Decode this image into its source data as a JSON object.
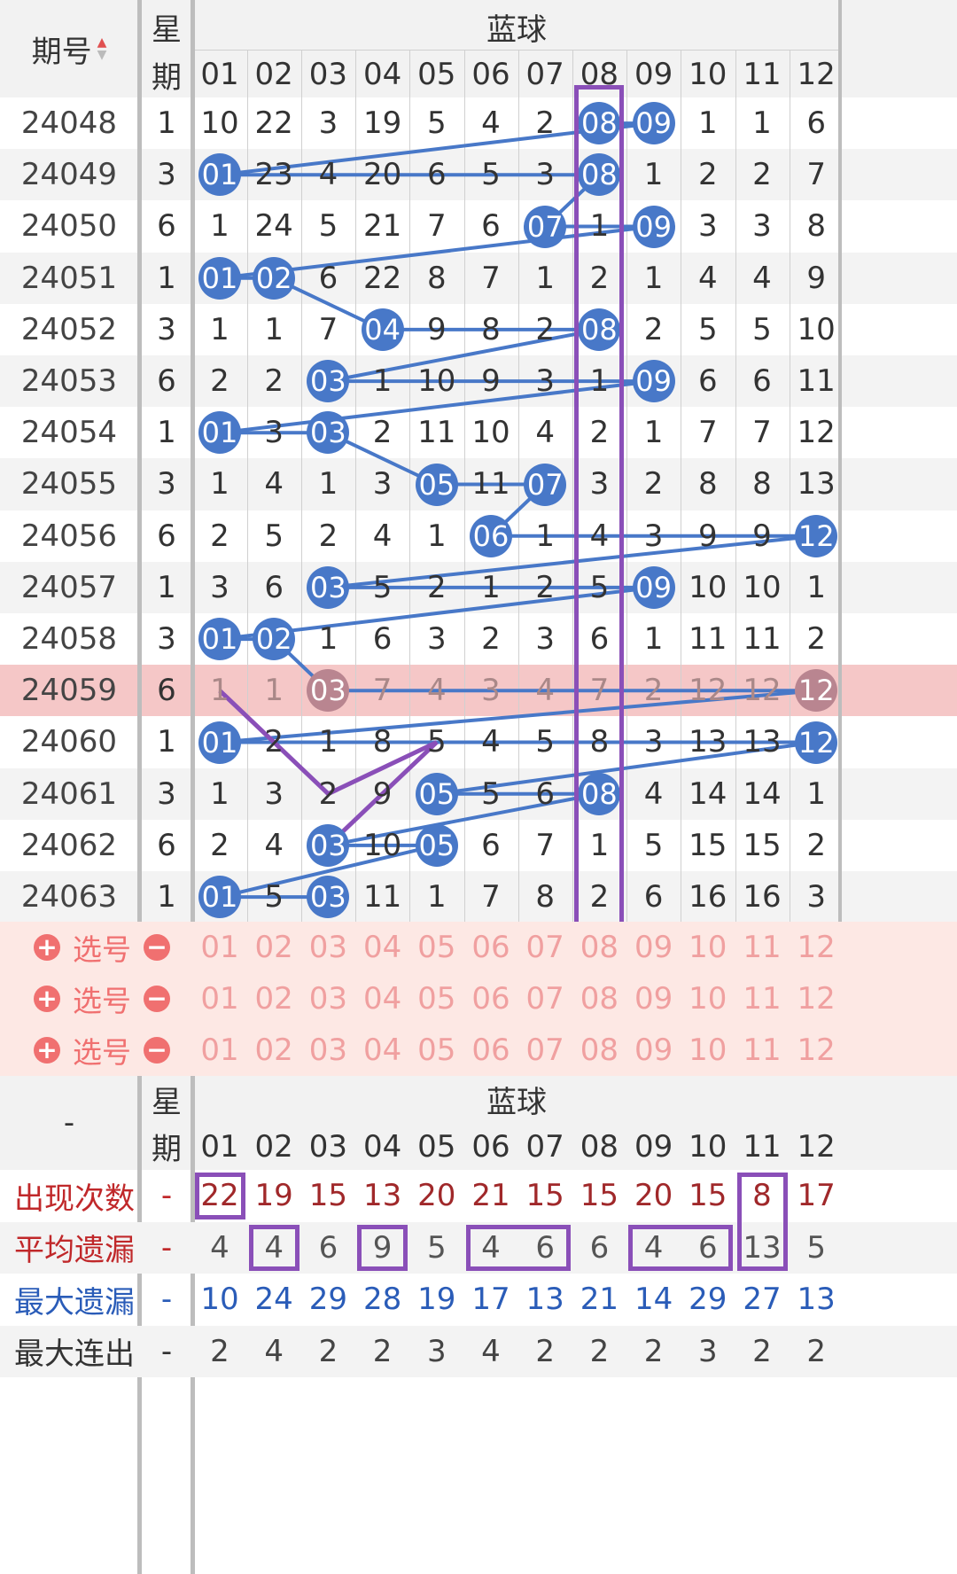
{
  "header": {
    "period_label": "期号",
    "sort_icon": "sort-arrows-icon",
    "weekday_label_1": "星",
    "weekday_label_2": "期",
    "group_title": "蓝球",
    "columns": [
      "01",
      "02",
      "03",
      "04",
      "05",
      "06",
      "07",
      "08",
      "09",
      "10",
      "11",
      "12"
    ]
  },
  "rows": [
    {
      "period": "24048",
      "weekday": "1",
      "cells": [
        "10",
        "22",
        "3",
        "19",
        "5",
        "4",
        "2",
        "08",
        "09",
        "1",
        "1",
        "6"
      ],
      "hits": [
        8,
        9
      ]
    },
    {
      "period": "24049",
      "weekday": "3",
      "cells": [
        "01",
        "23",
        "4",
        "20",
        "6",
        "5",
        "3",
        "08",
        "1",
        "2",
        "2",
        "7"
      ],
      "hits": [
        1,
        8
      ]
    },
    {
      "period": "24050",
      "weekday": "6",
      "cells": [
        "1",
        "24",
        "5",
        "21",
        "7",
        "6",
        "07",
        "1",
        "09",
        "3",
        "3",
        "8"
      ],
      "hits": [
        7,
        9
      ]
    },
    {
      "period": "24051",
      "weekday": "1",
      "cells": [
        "01",
        "02",
        "6",
        "22",
        "8",
        "7",
        "1",
        "2",
        "1",
        "4",
        "4",
        "9"
      ],
      "hits": [
        1,
        2
      ]
    },
    {
      "period": "24052",
      "weekday": "3",
      "cells": [
        "1",
        "1",
        "7",
        "04",
        "9",
        "8",
        "2",
        "08",
        "2",
        "5",
        "5",
        "10"
      ],
      "hits": [
        4,
        8
      ]
    },
    {
      "period": "24053",
      "weekday": "6",
      "cells": [
        "2",
        "2",
        "03",
        "1",
        "10",
        "9",
        "3",
        "1",
        "09",
        "6",
        "6",
        "11"
      ],
      "hits": [
        3,
        9
      ]
    },
    {
      "period": "24054",
      "weekday": "1",
      "cells": [
        "01",
        "3",
        "03",
        "2",
        "11",
        "10",
        "4",
        "2",
        "1",
        "7",
        "7",
        "12"
      ],
      "hits": [
        1,
        3
      ]
    },
    {
      "period": "24055",
      "weekday": "3",
      "cells": [
        "1",
        "4",
        "1",
        "3",
        "05",
        "11",
        "07",
        "3",
        "2",
        "8",
        "8",
        "13"
      ],
      "hits": [
        5,
        7
      ]
    },
    {
      "period": "24056",
      "weekday": "6",
      "cells": [
        "2",
        "5",
        "2",
        "4",
        "1",
        "06",
        "1",
        "4",
        "3",
        "9",
        "9",
        "12"
      ],
      "hits": [
        6,
        12
      ]
    },
    {
      "period": "24057",
      "weekday": "1",
      "cells": [
        "3",
        "6",
        "03",
        "5",
        "2",
        "1",
        "2",
        "5",
        "09",
        "10",
        "10",
        "1"
      ],
      "hits": [
        3,
        9
      ]
    },
    {
      "period": "24058",
      "weekday": "3",
      "cells": [
        "01",
        "02",
        "1",
        "6",
        "3",
        "2",
        "3",
        "6",
        "1",
        "11",
        "11",
        "2"
      ],
      "hits": [
        1,
        2
      ]
    },
    {
      "period": "24059",
      "weekday": "6",
      "cells": [
        "1",
        "1",
        "03",
        "7",
        "4",
        "3",
        "4",
        "7",
        "2",
        "12",
        "12",
        "12"
      ],
      "hits": [
        3,
        12
      ]
    },
    {
      "period": "24060",
      "weekday": "1",
      "cells": [
        "01",
        "2",
        "1",
        "8",
        "5",
        "4",
        "5",
        "8",
        "3",
        "13",
        "13",
        "12"
      ],
      "hits": [
        1,
        12
      ]
    },
    {
      "period": "24061",
      "weekday": "3",
      "cells": [
        "1",
        "3",
        "2",
        "9",
        "05",
        "5",
        "6",
        "08",
        "4",
        "14",
        "14",
        "1"
      ],
      "hits": [
        5,
        8
      ]
    },
    {
      "period": "24062",
      "weekday": "6",
      "cells": [
        "2",
        "4",
        "03",
        "10",
        "05",
        "6",
        "7",
        "1",
        "5",
        "15",
        "15",
        "2"
      ],
      "hits": [
        3,
        5
      ]
    },
    {
      "period": "24063",
      "weekday": "1",
      "cells": [
        "01",
        "5",
        "03",
        "11",
        "1",
        "7",
        "8",
        "2",
        "6",
        "16",
        "16",
        "3"
      ],
      "hits": [
        1,
        3
      ]
    }
  ],
  "highlight_period": "24059",
  "selectors": [
    {
      "label": "选号",
      "plus_icon": "plus-circle-icon",
      "minus_icon": "minus-circle-icon"
    },
    {
      "label": "选号",
      "plus_icon": "plus-circle-icon",
      "minus_icon": "minus-circle-icon"
    },
    {
      "label": "选号",
      "plus_icon": "plus-circle-icon",
      "minus_icon": "minus-circle-icon"
    }
  ],
  "stats_header": {
    "dash": "-",
    "weekday_label_1": "星",
    "weekday_label_2": "期",
    "group_title": "蓝球"
  },
  "stats": [
    {
      "label": "出现次数",
      "dash": "-",
      "values": [
        "22",
        "19",
        "15",
        "13",
        "20",
        "21",
        "15",
        "15",
        "20",
        "15",
        "8",
        "17"
      ],
      "label_color": "#c0282a",
      "value_color": "#a0282a"
    },
    {
      "label": "平均遗漏",
      "dash": "-",
      "values": [
        "4",
        "4",
        "6",
        "9",
        "5",
        "4",
        "6",
        "6",
        "4",
        "6",
        "13",
        "5"
      ],
      "label_color": "#c0282a",
      "value_color": "#555555"
    },
    {
      "label": "最大遗漏",
      "dash": "-",
      "values": [
        "10",
        "24",
        "29",
        "28",
        "19",
        "17",
        "13",
        "21",
        "14",
        "29",
        "27",
        "13"
      ],
      "label_color": "#2a5cb8",
      "value_color": "#2a5cb8"
    },
    {
      "label": "最大连出",
      "dash": "-",
      "values": [
        "2",
        "4",
        "2",
        "2",
        "3",
        "4",
        "2",
        "2",
        "2",
        "3",
        "2",
        "2"
      ],
      "label_color": "#333333",
      "value_color": "#444444"
    }
  ],
  "colors": {
    "ball": "#4878c8",
    "highlight_row": "#f5c7c7",
    "annotation": "#8a4fb8",
    "selector_bg": "#fde8e4"
  }
}
